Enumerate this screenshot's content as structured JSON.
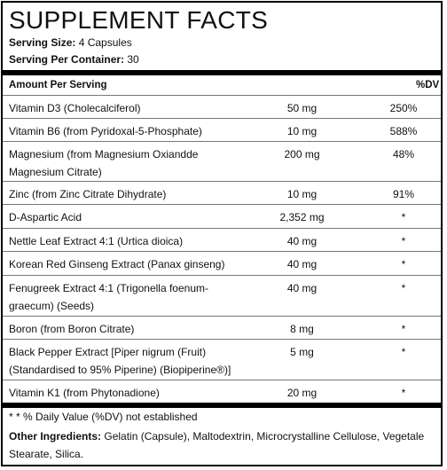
{
  "title": "SUPPLEMENT FACTS",
  "serving_size_label": "Serving Size:",
  "serving_size_value": "4 Capsules",
  "servings_per_container_label": "Serving Per Container:",
  "servings_per_container_value": "30",
  "header": {
    "amount": "Amount Per Serving",
    "dv": "%DV"
  },
  "rows": [
    {
      "name": "Vitamin D3 (Cholecalciferol)",
      "amount": "50 mg",
      "dv": "250%"
    },
    {
      "name": "Vitamin B6 (from Pyridoxal-5-Phosphate)",
      "amount": "10 mg",
      "dv": "588%"
    },
    {
      "name": "Magnesium (from Magnesium Oxiandde Magnesium Citrate)",
      "amount": "200 mg",
      "dv": "48%"
    },
    {
      "name": "Zinc (from Zinc Citrate Dihydrate)",
      "amount": "10 mg",
      "dv": "91%"
    },
    {
      "name": "D-Aspartic Acid",
      "amount": "2,352 mg",
      "dv": "*"
    },
    {
      "name": "Nettle Leaf Extract 4:1 (Urtica dioica)",
      "amount": "40 mg",
      "dv": "*"
    },
    {
      "name": "Korean Red Ginseng Extract (Panax ginseng)",
      "amount": "40 mg",
      "dv": "*"
    },
    {
      "name": "Fenugreek Extract 4:1 (Trigonella foenum-graecum) (Seeds)",
      "amount": "40 mg",
      "dv": "*"
    },
    {
      "name": "Boron (from Boron Citrate)",
      "amount": "8 mg",
      "dv": "*"
    },
    {
      "name": "Black Pepper Extract [Piper nigrum (Fruit) (Standardised to 95% Piperine) (Biopiperine®)]",
      "amount": "5 mg",
      "dv": "*"
    },
    {
      "name": "Vitamin K1 (from Phytonadione)",
      "amount": "20 mg",
      "dv": "*"
    }
  ],
  "footnote": "* * % Daily Value (%DV) not established",
  "other_ingredients_label": "Other Ingredients:",
  "other_ingredients_value": "Gelatin (Capsule), Maltodextrin, Microcrystalline Cellulose, Vegetale Stearate, Silica."
}
